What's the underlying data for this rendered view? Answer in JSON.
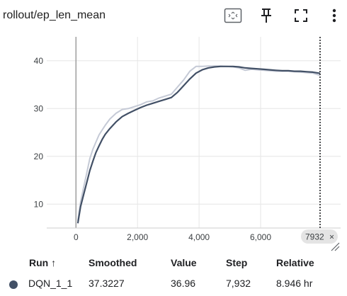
{
  "header": {
    "title": "rollout/ep_len_mean"
  },
  "toolbar": {
    "icons": [
      "fit-domain-icon",
      "pin-icon",
      "fullscreen-icon",
      "more-vert-icon"
    ]
  },
  "colors": {
    "series_main": "#425066",
    "series_raw": "#c5cad6",
    "grid": "#e6e6e6",
    "axis": "#9e9e9e",
    "cursor": "#202124",
    "badge_bg": "#e4e4e4"
  },
  "cursor": {
    "label": "7932",
    "close": "×"
  },
  "table": {
    "headers": {
      "run": "Run ↑",
      "smoothed": "Smoothed",
      "value": "Value",
      "step": "Step",
      "relative": "Relative"
    },
    "rows": [
      {
        "run": "DQN_1_1",
        "smoothed": "37.3227",
        "value": "36.96",
        "step": "7,932",
        "relative": "8.946 hr"
      }
    ]
  },
  "chart_data": {
    "type": "line",
    "title": "rollout/ep_len_mean",
    "xlim": [
      -950,
      8600
    ],
    "ylim": [
      5,
      45
    ],
    "xticks": [
      0,
      2000,
      4000,
      6000
    ],
    "xtick_labels": [
      "0",
      "2,000",
      "4,000",
      "6,000"
    ],
    "yticks": [
      10,
      20,
      30,
      40
    ],
    "ytick_labels": [
      "10",
      "20",
      "30",
      "40"
    ],
    "cursor_x": 7932,
    "grid": true,
    "series": [
      {
        "role": "raw",
        "x": [
          60,
          150,
          250,
          350,
          450,
          550,
          650,
          750,
          850,
          950,
          1100,
          1300,
          1500,
          1700,
          1900,
          2100,
          2300,
          2500,
          2700,
          2900,
          3100,
          3300,
          3500,
          3700,
          3900,
          4100,
          4300,
          4500,
          4700,
          4900,
          5100,
          5300,
          5500,
          5700,
          5900,
          6100,
          6300,
          6500,
          6700,
          6900,
          7100,
          7300,
          7500,
          7700,
          7900,
          7932
        ],
        "y": [
          6.5,
          10.5,
          13.5,
          16.5,
          19.5,
          21.5,
          23.0,
          24.5,
          25.5,
          26.5,
          27.8,
          29.0,
          29.8,
          30.0,
          30.4,
          30.8,
          31.4,
          31.6,
          32.2,
          32.6,
          33.0,
          34.5,
          36.0,
          37.8,
          38.8,
          38.8,
          38.9,
          38.9,
          38.9,
          38.8,
          38.7,
          38.5,
          38.0,
          38.2,
          38.1,
          38.0,
          37.9,
          37.8,
          37.8,
          37.8,
          37.7,
          37.6,
          37.5,
          37.4,
          37.0,
          36.96
        ]
      },
      {
        "role": "smoothed",
        "x": [
          60,
          150,
          250,
          350,
          450,
          550,
          650,
          750,
          850,
          950,
          1100,
          1300,
          1500,
          1700,
          1900,
          2100,
          2300,
          2500,
          2700,
          2900,
          3100,
          3300,
          3500,
          3700,
          3900,
          4100,
          4300,
          4500,
          4700,
          4900,
          5100,
          5300,
          5500,
          5700,
          5900,
          6100,
          6300,
          6500,
          6700,
          6900,
          7100,
          7300,
          7500,
          7700,
          7900,
          7932
        ],
        "y": [
          6.0,
          9.5,
          12.0,
          14.5,
          17.0,
          19.0,
          20.8,
          22.2,
          23.5,
          24.6,
          25.8,
          27.2,
          28.3,
          29.0,
          29.6,
          30.2,
          30.7,
          31.1,
          31.5,
          31.9,
          32.3,
          33.4,
          34.8,
          36.2,
          37.4,
          38.1,
          38.5,
          38.7,
          38.8,
          38.8,
          38.8,
          38.7,
          38.5,
          38.4,
          38.3,
          38.2,
          38.1,
          38.0,
          37.9,
          37.9,
          37.8,
          37.8,
          37.7,
          37.6,
          37.4,
          37.3227
        ]
      }
    ]
  }
}
